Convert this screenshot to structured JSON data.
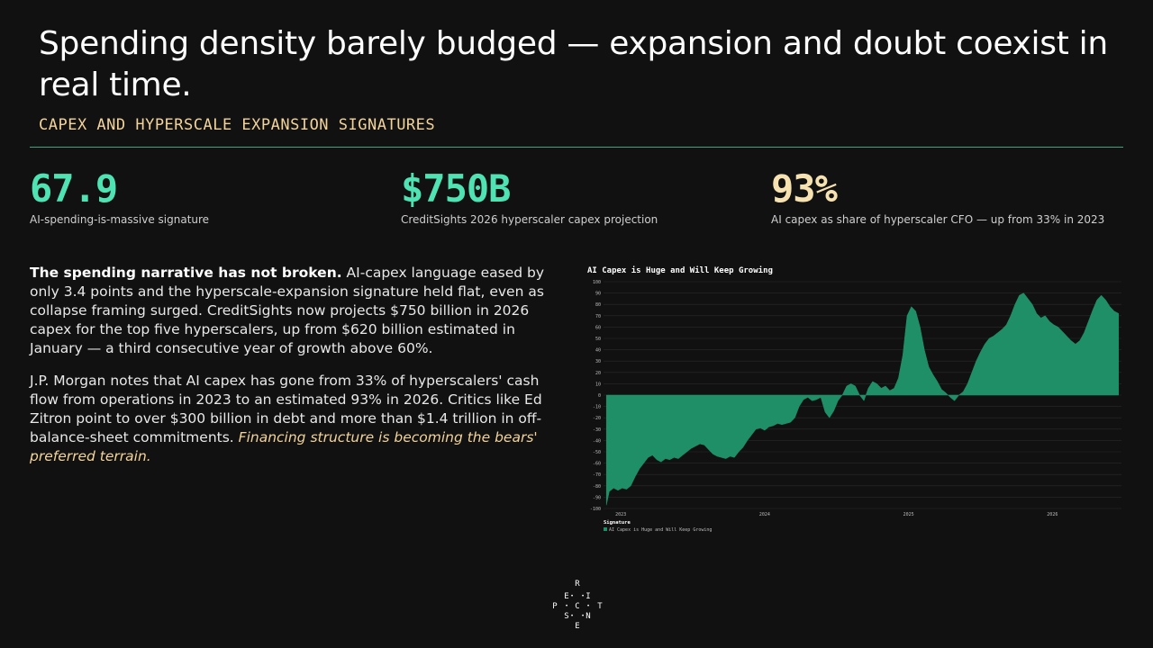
{
  "slide": {
    "title": "Spending density barely budged — expansion and doubt coexist in real time.",
    "subtitle": "CAPEX AND HYPERSCALE EXPANSION SIGNATURES"
  },
  "kpis": [
    {
      "value": "67.9",
      "label": "AI-spending-is-massive signature",
      "color": "#4fe3b3"
    },
    {
      "value": "$750B",
      "label": "CreditSights 2026 hyperscaler capex projection",
      "color": "#4fe3b3"
    },
    {
      "value": "93%",
      "label": "AI capex as share of hyperscaler CFO — up from 33% in 2023",
      "color": "#f6e1b0"
    }
  ],
  "body": {
    "p1_bold": "The spending narrative has not broken.",
    "p1_rest": " AI-capex language eased by only 3.4 points and the hyperscale-expansion signature held flat, even as collapse framing surged. CreditSights now projects $750 billion in 2026 capex for the top five hyperscalers, up from $620 billion estimated in January — a third consecutive year of growth above 60%.",
    "p2_text": "J.P. Morgan notes that AI capex has gone from 33% of hyperscalers' cash flow from operations in 2023 to an estimated 93% in 2026. Critics like Ed Zitron point to over $300 billion in debt and more than $1.4 trillion in off-balance-sheet commitments. ",
    "p2_italic": "Financing structure is becoming the bears' preferred terrain."
  },
  "logo": {
    "letters": [
      "R",
      "E",
      "I",
      "P",
      "C",
      "T",
      "S",
      "N",
      "E"
    ]
  },
  "chart_data": {
    "type": "area",
    "title": "AI Capex is Huge and Will Keep Growing",
    "legend_title": "Signature",
    "series": [
      {
        "name": "AI Capex is Huge and Will Keep Growing",
        "color": "#1f8f68",
        "points": [
          [
            2022.9,
            -97
          ],
          [
            2022.92,
            -85
          ],
          [
            2022.95,
            -82
          ],
          [
            2022.98,
            -84
          ],
          [
            2023.01,
            -82
          ],
          [
            2023.04,
            -83
          ],
          [
            2023.07,
            -80
          ],
          [
            2023.1,
            -72
          ],
          [
            2023.13,
            -65
          ],
          [
            2023.16,
            -60
          ],
          [
            2023.19,
            -55
          ],
          [
            2023.22,
            -53
          ],
          [
            2023.25,
            -57
          ],
          [
            2023.28,
            -59
          ],
          [
            2023.31,
            -56
          ],
          [
            2023.34,
            -57
          ],
          [
            2023.37,
            -55
          ],
          [
            2023.4,
            -56
          ],
          [
            2023.43,
            -53
          ],
          [
            2023.46,
            -50
          ],
          [
            2023.49,
            -47
          ],
          [
            2023.52,
            -45
          ],
          [
            2023.55,
            -43
          ],
          [
            2023.58,
            -44
          ],
          [
            2023.61,
            -48
          ],
          [
            2023.64,
            -52
          ],
          [
            2023.67,
            -54
          ],
          [
            2023.7,
            -55
          ],
          [
            2023.73,
            -56
          ],
          [
            2023.76,
            -54
          ],
          [
            2023.79,
            -55
          ],
          [
            2023.82,
            -50
          ],
          [
            2023.85,
            -46
          ],
          [
            2023.88,
            -40
          ],
          [
            2023.91,
            -35
          ],
          [
            2023.94,
            -30
          ],
          [
            2023.97,
            -29
          ],
          [
            2024.0,
            -31
          ],
          [
            2024.03,
            -28
          ],
          [
            2024.06,
            -27
          ],
          [
            2024.09,
            -25
          ],
          [
            2024.12,
            -26
          ],
          [
            2024.15,
            -25
          ],
          [
            2024.18,
            -24
          ],
          [
            2024.21,
            -20
          ],
          [
            2024.24,
            -10
          ],
          [
            2024.27,
            -4
          ],
          [
            2024.3,
            -2
          ],
          [
            2024.33,
            -5
          ],
          [
            2024.36,
            -4
          ],
          [
            2024.39,
            -2
          ],
          [
            2024.42,
            -15
          ],
          [
            2024.45,
            -20
          ],
          [
            2024.48,
            -14
          ],
          [
            2024.51,
            -5
          ],
          [
            2024.54,
            0
          ],
          [
            2024.57,
            8
          ],
          [
            2024.6,
            10
          ],
          [
            2024.63,
            8
          ],
          [
            2024.66,
            0
          ],
          [
            2024.69,
            -5
          ],
          [
            2024.72,
            6
          ],
          [
            2024.75,
            12
          ],
          [
            2024.78,
            10
          ],
          [
            2024.81,
            6
          ],
          [
            2024.84,
            8
          ],
          [
            2024.87,
            4
          ],
          [
            2024.9,
            6
          ],
          [
            2024.93,
            15
          ],
          [
            2024.96,
            35
          ],
          [
            2024.99,
            70
          ],
          [
            2025.02,
            78
          ],
          [
            2025.05,
            74
          ],
          [
            2025.08,
            60
          ],
          [
            2025.11,
            40
          ],
          [
            2025.14,
            25
          ],
          [
            2025.17,
            18
          ],
          [
            2025.2,
            12
          ],
          [
            2025.23,
            5
          ],
          [
            2025.26,
            2
          ],
          [
            2025.29,
            -2
          ],
          [
            2025.32,
            -5
          ],
          [
            2025.35,
            0
          ],
          [
            2025.38,
            3
          ],
          [
            2025.41,
            10
          ],
          [
            2025.44,
            20
          ],
          [
            2025.47,
            30
          ],
          [
            2025.5,
            38
          ],
          [
            2025.53,
            45
          ],
          [
            2025.56,
            50
          ],
          [
            2025.59,
            52
          ],
          [
            2025.62,
            55
          ],
          [
            2025.65,
            58
          ],
          [
            2025.68,
            62
          ],
          [
            2025.71,
            70
          ],
          [
            2025.74,
            80
          ],
          [
            2025.77,
            88
          ],
          [
            2025.8,
            90
          ],
          [
            2025.83,
            85
          ],
          [
            2025.86,
            80
          ],
          [
            2025.89,
            72
          ],
          [
            2025.92,
            68
          ],
          [
            2025.95,
            70
          ],
          [
            2025.98,
            65
          ],
          [
            2026.01,
            62
          ],
          [
            2026.04,
            60
          ],
          [
            2026.07,
            56
          ],
          [
            2026.1,
            52
          ],
          [
            2026.13,
            48
          ],
          [
            2026.16,
            45
          ],
          [
            2026.19,
            48
          ],
          [
            2026.22,
            55
          ],
          [
            2026.25,
            65
          ],
          [
            2026.28,
            75
          ],
          [
            2026.31,
            84
          ],
          [
            2026.34,
            88
          ],
          [
            2026.37,
            84
          ],
          [
            2026.4,
            78
          ],
          [
            2026.43,
            74
          ],
          [
            2026.46,
            72
          ]
        ]
      }
    ],
    "x_ticks": [
      {
        "x": 2023.0,
        "label": "2023"
      },
      {
        "x": 2024.0,
        "label": "2024"
      },
      {
        "x": 2025.0,
        "label": "2025"
      },
      {
        "x": 2026.0,
        "label": "2026"
      }
    ],
    "ylim": [
      -100,
      100
    ],
    "y_ticks": [
      100,
      90,
      80,
      70,
      60,
      50,
      40,
      30,
      20,
      10,
      0,
      -10,
      -20,
      -30,
      -40,
      -50,
      -60,
      -70,
      -80,
      -90,
      -100
    ],
    "xlim": [
      2022.88,
      2026.48
    ],
    "grid": true,
    "legend_position": "bottom-left"
  }
}
